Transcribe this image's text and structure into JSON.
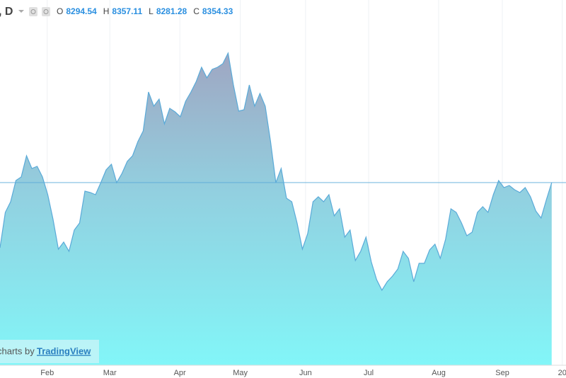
{
  "chart_data": {
    "type": "area",
    "symbol": ", D",
    "ohlc": [
      {
        "label": "O",
        "value": 8294.54
      },
      {
        "label": "H",
        "value": 8357.11
      },
      {
        "label": "L",
        "value": 8281.28
      },
      {
        "label": "C",
        "value": 8354.33
      }
    ],
    "watermark": {
      "prefix": "charts by",
      "brand": "TradingView"
    },
    "series": [
      {
        "color": "#5aaad8",
        "values": [
          7894,
          8144,
          8219,
          8369,
          8394,
          8544,
          8454,
          8469,
          8394,
          8269,
          8094,
          7884,
          7934,
          7869,
          8019,
          8069,
          8294,
          8284,
          8269,
          8354,
          8444,
          8484,
          8354,
          8419,
          8504,
          8544,
          8644,
          8719,
          8994,
          8894,
          8944,
          8769,
          8879,
          8854,
          8819,
          8929,
          8994,
          9069,
          9169,
          9094,
          9154,
          9169,
          9194,
          9269,
          9044,
          8859,
          8869,
          9044,
          8894,
          8984,
          8894,
          8644,
          8354,
          8454,
          8244,
          8219,
          8069,
          7884,
          7994,
          8219,
          8254,
          8219,
          8269,
          8119,
          8169,
          7969,
          8019,
          7804,
          7869,
          7969,
          7794,
          7669,
          7594,
          7654,
          7694,
          7744,
          7869,
          7819,
          7654,
          7784,
          7784,
          7879,
          7919,
          7819,
          7954,
          8169,
          8144,
          8069,
          7979,
          8004,
          8144,
          8184,
          8144,
          8269,
          8369,
          8319,
          8334,
          8304,
          8284,
          8319,
          8254,
          8154,
          8104,
          8234,
          8354.33
        ]
      }
    ],
    "xlim": [
      0,
      106.7
    ],
    "xticks": [
      {
        "value": 8.9,
        "label": "Feb"
      },
      {
        "value": 20.7,
        "label": "Mar"
      },
      {
        "value": 33.9,
        "label": "Apr"
      },
      {
        "value": 45.3,
        "label": "May"
      },
      {
        "value": 57.6,
        "label": "Jun"
      },
      {
        "value": 69.5,
        "label": "Jul"
      },
      {
        "value": 82.7,
        "label": "Aug"
      },
      {
        "value": 94.7,
        "label": "Sep"
      },
      {
        "value": 106,
        "label": "20"
      }
    ],
    "ylim": [
      7064,
      9644
    ],
    "last_price_line": true
  }
}
